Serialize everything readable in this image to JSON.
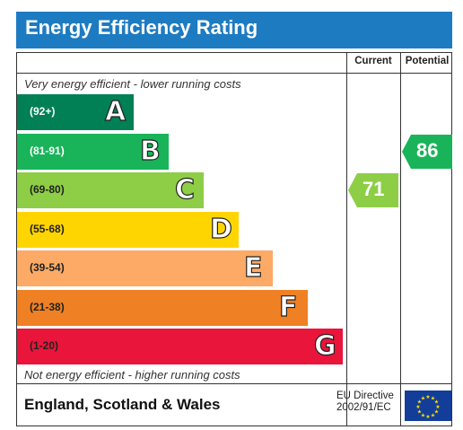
{
  "header": {
    "title": "Energy Efficiency Rating"
  },
  "columns": {
    "current": "Current",
    "potential": "Potential"
  },
  "notes": {
    "top": "Very energy efficient - lower running costs",
    "bottom": "Not energy efficient - higher running costs"
  },
  "bands": [
    {
      "letter": "A",
      "range": "(92+)",
      "color": "#008054",
      "dark_text": false
    },
    {
      "letter": "B",
      "range": "(81-91)",
      "color": "#19b459",
      "dark_text": false
    },
    {
      "letter": "C",
      "range": "(69-80)",
      "color": "#8dce46",
      "dark_text": true
    },
    {
      "letter": "D",
      "range": "(55-68)",
      "color": "#ffd500",
      "dark_text": true
    },
    {
      "letter": "E",
      "range": "(39-54)",
      "color": "#fcaa65",
      "dark_text": true
    },
    {
      "letter": "F",
      "range": "(21-38)",
      "color": "#ef8023",
      "dark_text": true
    },
    {
      "letter": "G",
      "range": "(1-20)",
      "color": "#e9153b",
      "dark_text": true
    }
  ],
  "ratings": {
    "current": {
      "value": "71",
      "band": "C",
      "color": "#8dce46"
    },
    "potential": {
      "value": "86",
      "band": "B",
      "color": "#19b459"
    }
  },
  "footer": {
    "region": "England, Scotland & Wales",
    "directive_line1": "EU Directive",
    "directive_line2": "2002/91/EC"
  },
  "chart_data": {
    "type": "bar",
    "title": "Energy Efficiency Rating",
    "categories": [
      "A",
      "B",
      "C",
      "D",
      "E",
      "F",
      "G"
    ],
    "category_ranges": [
      "92+",
      "81-91",
      "69-80",
      "55-68",
      "39-54",
      "21-38",
      "1-20"
    ],
    "current": 71,
    "potential": 86
  }
}
